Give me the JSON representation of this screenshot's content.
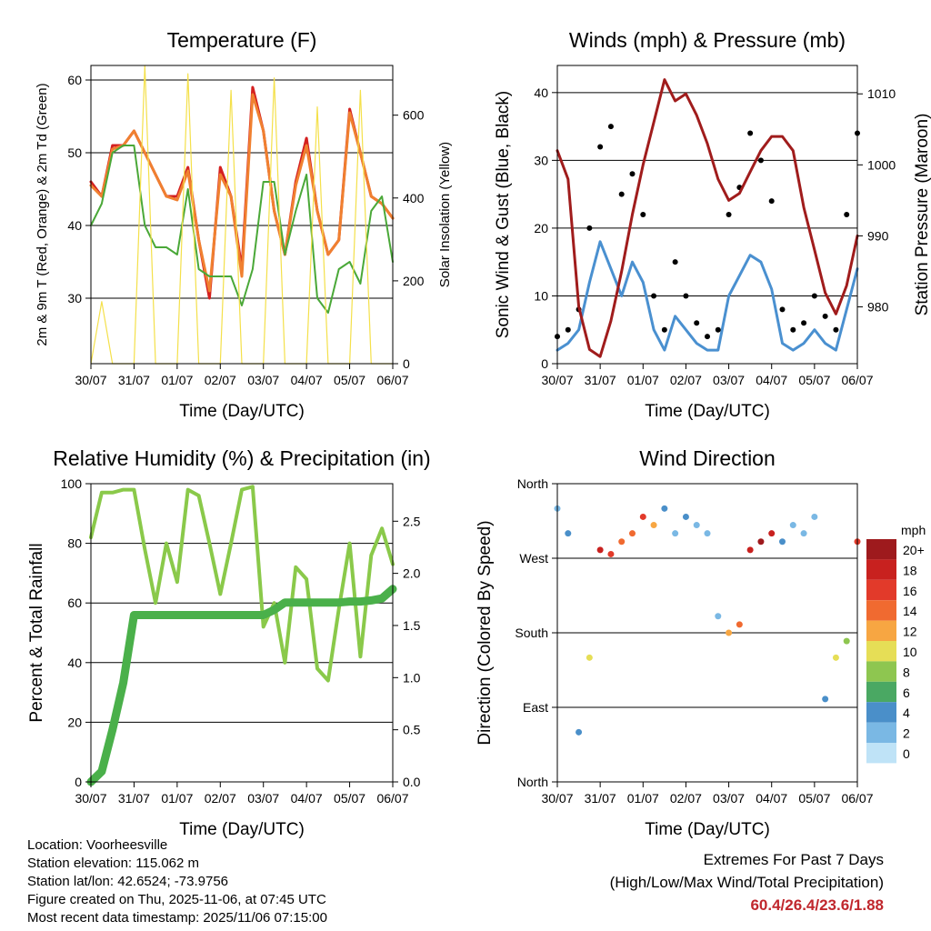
{
  "x_ticks": [
    "30/07",
    "31/07",
    "01/07",
    "02/07",
    "03/07",
    "04/07",
    "05/07",
    "06/07"
  ],
  "x_label": "Time (Day/UTC)",
  "chart_data": [
    {
      "type": "line",
      "title": "Temperature (F)",
      "xlabel": "Time (Day/UTC)",
      "ylabel": "2m & 9m T (Red, Orange) & 2m Td (Green)",
      "ylabel_right": "Solar Insolation (Yellow)",
      "ylim": [
        21,
        62
      ],
      "yticks": [
        "30",
        "40",
        "50",
        "60"
      ],
      "y2lim": [
        0,
        720
      ],
      "y2ticks": [
        "0",
        "200",
        "400",
        "600"
      ],
      "x": [
        0.0,
        0.25,
        0.5,
        0.75,
        1.0,
        1.25,
        1.5,
        1.75,
        2.0,
        2.25,
        2.5,
        2.75,
        3.0,
        3.25,
        3.5,
        3.75,
        4.0,
        4.25,
        4.5,
        4.75,
        5.0,
        5.25,
        5.5,
        5.75,
        6.0,
        6.25,
        6.5,
        6.75,
        7.0
      ],
      "series": [
        {
          "name": "2m T",
          "color": "#d42020",
          "values": [
            46,
            44,
            51,
            51,
            53,
            50,
            47,
            44,
            44,
            48,
            38,
            30,
            48,
            44,
            34,
            59,
            53,
            42,
            36,
            46,
            52,
            42,
            36,
            38,
            56,
            50,
            44,
            43,
            41
          ]
        },
        {
          "name": "9m T",
          "color": "#f08030",
          "values": [
            45.5,
            44,
            50.5,
            51,
            53,
            50,
            47,
            44,
            43.5,
            47.5,
            38,
            31,
            47,
            44,
            33,
            58,
            53,
            42,
            36,
            45.5,
            51,
            42,
            36,
            38,
            55.5,
            50,
            44,
            43,
            41
          ]
        },
        {
          "name": "2m Td",
          "color": "#4aa838",
          "values": [
            40,
            43,
            50,
            51,
            51,
            40,
            37,
            37,
            36,
            45,
            34,
            33,
            33,
            33,
            29,
            34,
            46,
            46,
            36,
            42,
            47,
            30,
            28,
            34,
            35,
            32,
            42,
            44,
            35
          ]
        },
        {
          "name": "Solar Insolation",
          "color": "#f4e04a",
          "values": [
            0,
            150,
            0,
            0,
            0,
            720,
            0,
            0,
            0,
            700,
            0,
            0,
            0,
            660,
            0,
            0,
            0,
            690,
            0,
            0,
            0,
            620,
            0,
            0,
            0,
            660,
            0,
            0,
            0
          ]
        }
      ]
    },
    {
      "type": "line",
      "title": "Winds (mph) & Pressure (mb)",
      "xlabel": "Time (Day/UTC)",
      "ylabel": "Sonic Wind & Gust (Blue, Black)",
      "ylabel_right": "Station Pressure (Maroon)",
      "ylim": [
        0,
        44
      ],
      "yticks": [
        "0",
        "10",
        "20",
        "30",
        "40"
      ],
      "y2lim": [
        972,
        1014
      ],
      "y2ticks": [
        "980",
        "990",
        "1000",
        "1010"
      ],
      "x": [
        0.0,
        0.25,
        0.5,
        0.75,
        1.0,
        1.25,
        1.5,
        1.75,
        2.0,
        2.25,
        2.5,
        2.75,
        3.0,
        3.25,
        3.5,
        3.75,
        4.0,
        4.25,
        4.5,
        4.75,
        5.0,
        5.25,
        5.5,
        5.75,
        6.0,
        6.25,
        6.5,
        6.75,
        7.0
      ],
      "series": [
        {
          "name": "Sonic Wind",
          "color": "#4a90d0",
          "values": [
            2,
            3,
            5,
            12,
            18,
            14,
            10,
            15,
            12,
            5,
            2,
            7,
            5,
            3,
            2,
            2,
            10,
            13,
            16,
            15,
            11,
            3,
            2,
            3,
            5,
            3,
            2,
            8,
            14
          ]
        },
        {
          "name": "Gust",
          "color": "#000000",
          "values": [
            4,
            5,
            8,
            20,
            32,
            35,
            25,
            28,
            22,
            10,
            5,
            15,
            10,
            6,
            4,
            5,
            22,
            26,
            34,
            30,
            24,
            8,
            5,
            6,
            10,
            7,
            5,
            22,
            34
          ]
        },
        {
          "name": "Station Pressure",
          "color": "#a01c1c",
          "values": [
            1002,
            998,
            980,
            974,
            973,
            978,
            985,
            993,
            1000,
            1006,
            1012,
            1009,
            1010,
            1007,
            1003,
            998,
            995,
            996,
            999,
            1002,
            1004,
            1004,
            1002,
            994,
            988,
            982,
            979,
            983,
            990
          ]
        }
      ]
    },
    {
      "type": "line",
      "title": "Relative Humidity (%) & Precipitation (in)",
      "xlabel": "Time (Day/UTC)",
      "ylabel": "Percent & Total Rainfall",
      "ylim": [
        0,
        100
      ],
      "yticks": [
        "0",
        "20",
        "40",
        "60",
        "80",
        "100"
      ],
      "y2lim": [
        0,
        2.86
      ],
      "y2ticks": [
        "0.0",
        "0.5",
        "1.0",
        "1.5",
        "2.0",
        "2.5"
      ],
      "x": [
        0.0,
        0.25,
        0.5,
        0.75,
        1.0,
        1.25,
        1.5,
        1.75,
        2.0,
        2.25,
        2.5,
        2.75,
        3.0,
        3.25,
        3.5,
        3.75,
        4.0,
        4.25,
        4.5,
        4.75,
        5.0,
        5.25,
        5.5,
        5.75,
        6.0,
        6.25,
        6.5,
        6.75,
        7.0
      ],
      "series": [
        {
          "name": "Relative Humidity",
          "color": "#8ac94a",
          "values": [
            82,
            97,
            97,
            98,
            98,
            78,
            60,
            80,
            67,
            98,
            96,
            80,
            63,
            80,
            98,
            99,
            52,
            60,
            40,
            72,
            68,
            38,
            34,
            58,
            80,
            42,
            76,
            85,
            73
          ]
        },
        {
          "name": "Total Precipitation",
          "color": "#4ab04a",
          "values": [
            0,
            0.1,
            0.5,
            0.95,
            1.6,
            1.6,
            1.6,
            1.6,
            1.6,
            1.6,
            1.6,
            1.6,
            1.6,
            1.6,
            1.6,
            1.6,
            1.6,
            1.65,
            1.72,
            1.72,
            1.72,
            1.72,
            1.72,
            1.72,
            1.73,
            1.73,
            1.74,
            1.76,
            1.85
          ]
        }
      ]
    },
    {
      "type": "scatter",
      "title": "Wind Direction",
      "xlabel": "Time (Day/UTC)",
      "ylabel": "Direction (Colored By Speed)",
      "yticks": [
        "North",
        "East",
        "South",
        "West",
        "North"
      ],
      "ylim": [
        0,
        360
      ],
      "colorbar_unit": "mph",
      "colorbar_labels": [
        "20+",
        "18",
        "16",
        "14",
        "12",
        "10",
        "8",
        "6",
        "4",
        "2",
        "0"
      ],
      "colorbar_colors": [
        "#9e1a1d",
        "#c8211f",
        "#e23a2a",
        "#f06a30",
        "#f7a642",
        "#e6de56",
        "#8ec650",
        "#4aa863",
        "#4a8fc9",
        "#7ab8e4",
        "#bfe3f7"
      ],
      "x": [
        0.0,
        0.25,
        0.5,
        0.75,
        1.0,
        1.25,
        1.5,
        1.75,
        2.0,
        2.25,
        2.5,
        2.75,
        3.0,
        3.25,
        3.5,
        3.75,
        4.0,
        4.25,
        4.5,
        4.75,
        5.0,
        5.25,
        5.5,
        5.75,
        6.0,
        6.25,
        6.5,
        6.75,
        7.0
      ],
      "direction": [
        330,
        300,
        60,
        150,
        280,
        275,
        290,
        300,
        320,
        310,
        330,
        300,
        320,
        310,
        300,
        200,
        180,
        190,
        280,
        290,
        300,
        290,
        310,
        300,
        320,
        100,
        150,
        170,
        290
      ],
      "speed": [
        3,
        4,
        5,
        10,
        18,
        17,
        15,
        14,
        16,
        12,
        4,
        3,
        4,
        3,
        2,
        3,
        12,
        14,
        18,
        20,
        18,
        4,
        2,
        3,
        3,
        4,
        11,
        8,
        17
      ]
    }
  ],
  "footer": {
    "location": "Location: Voorheesville",
    "elevation": "Station elevation: 115.062 m",
    "latlon": "Station lat/lon: 42.6524; -73.9756",
    "created": "Figure created on Thu, 2025-11-06, at 07:45 UTC",
    "timestamp": "Most recent data timestamp: 2025/11/06 07:15:00"
  },
  "extremes": {
    "title": "Extremes For Past 7 Days",
    "subtitle": "(High/Low/Max Wind/Total Precipitation)",
    "values": "60.4/26.4/23.6/1.88"
  }
}
